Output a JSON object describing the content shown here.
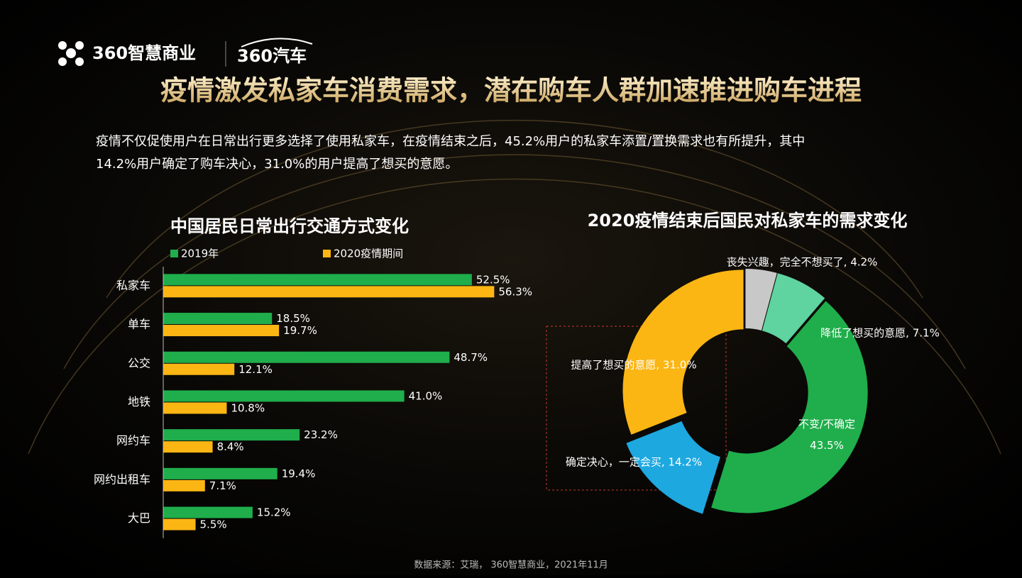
{
  "header": {
    "brand": "360智慧商业",
    "brand2": "360汽车"
  },
  "title": "疫情激发私家车消费需求，潜在购车人群加速推进购车进程",
  "description": [
    "疫情不仅促使用户在日常出行更多选择了使用私家车，在疫情结束之后，45.2%用户的私家车添置/置换需求也有所提升，其中",
    "14.2%用户确定了购车决心，31.0%的用户提高了想买的意愿。"
  ],
  "chart_data": [
    {
      "type": "bar",
      "orientation": "horizontal",
      "title": "中国居民日常出行交通方式变化",
      "categories": [
        "私家车",
        "单车",
        "公交",
        "地铁",
        "网约车",
        "网约出租车",
        "大巴"
      ],
      "series": [
        {
          "name": "2019年",
          "color": "#1fae4b",
          "values": [
            52.5,
            18.5,
            48.7,
            41.0,
            23.2,
            19.4,
            15.2
          ],
          "value_labels": [
            "52.5%",
            "18.5%",
            "48.7%",
            "41.0%",
            "23.2%",
            "19.4%",
            "15.2%"
          ]
        },
        {
          "name": "2020疫情期间",
          "color": "#fbb614",
          "values": [
            56.3,
            19.7,
            12.1,
            10.8,
            8.4,
            7.1,
            5.5
          ],
          "value_labels": [
            "56.3%",
            "19.7%",
            "12.1%",
            "10.8%",
            "8.4%",
            "7.1%",
            "5.5%"
          ]
        }
      ],
      "xlim": [
        0,
        60
      ]
    },
    {
      "type": "donut",
      "title": "2020疫情结束后国民对私家车的需求变化",
      "values": [
        4.2,
        7.1,
        43.5,
        14.2,
        31.0
      ],
      "value_labels": [
        "丧失兴趣，完全不想买了, 4.2%",
        "降低了想买的意愿, 7.1%",
        "不变/不确定\n43.5%",
        "确定决心，一定会买, 14.2%",
        "提高了想买的意愿, 31.0%"
      ],
      "colors": [
        "#c8c8c8",
        "#5fd3a0",
        "#1fae4b",
        "#1ea8e0",
        "#fbb614"
      ],
      "exploded": [
        false,
        false,
        false,
        true,
        false
      ]
    }
  ],
  "source": "数据来源：艾瑞， 360智慧商业，2021年11月"
}
